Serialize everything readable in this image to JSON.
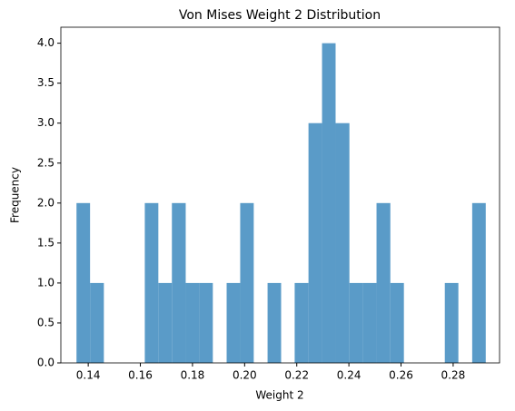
{
  "chart_data": {
    "type": "histogram",
    "title": "Von Mises Weight 2 Distribution",
    "x_label": "Weight 2",
    "y_label": "Frequency",
    "bins": [
      0.1355,
      0.1407,
      0.146,
      0.1512,
      0.1564,
      0.1617,
      0.1669,
      0.1721,
      0.1774,
      0.1826,
      0.1878,
      0.1931,
      0.1983,
      0.2035,
      0.2088,
      0.214,
      0.2192,
      0.2245,
      0.2297,
      0.2349,
      0.2402,
      0.2454,
      0.2506,
      0.2559,
      0.2611,
      0.2663,
      0.2716,
      0.2768,
      0.282,
      0.2873,
      0.2925
    ],
    "values": [
      2,
      1,
      0,
      0,
      0,
      2,
      1,
      2,
      1,
      1,
      0,
      1,
      2,
      0,
      1,
      0,
      1,
      3,
      4,
      3,
      1,
      1,
      2,
      1,
      0,
      0,
      0,
      1,
      0,
      2
    ],
    "color": "#5a9bc8",
    "xlim": [
      0.1295,
      0.2978
    ],
    "xticks": [
      0.14,
      0.16,
      0.18,
      {
        "value": 0.2,
        "label": "0.20"
      },
      0.22,
      0.24,
      0.26,
      0.28
    ],
    "ylim": [
      0,
      4.2
    ],
    "yticks": [
      {
        "value": 0,
        "label": "0.0"
      },
      {
        "value": 0.5,
        "label": "0.5"
      },
      {
        "value": 1,
        "label": "1.0"
      },
      {
        "value": 1.5,
        "label": "1.5"
      },
      {
        "value": 2,
        "label": "2.0"
      },
      {
        "value": 2.5,
        "label": "2.5"
      },
      {
        "value": 3,
        "label": "3.0"
      },
      {
        "value": 3.5,
        "label": "3.5"
      },
      {
        "value": 4,
        "label": "4.0"
      }
    ],
    "grid": false
  }
}
